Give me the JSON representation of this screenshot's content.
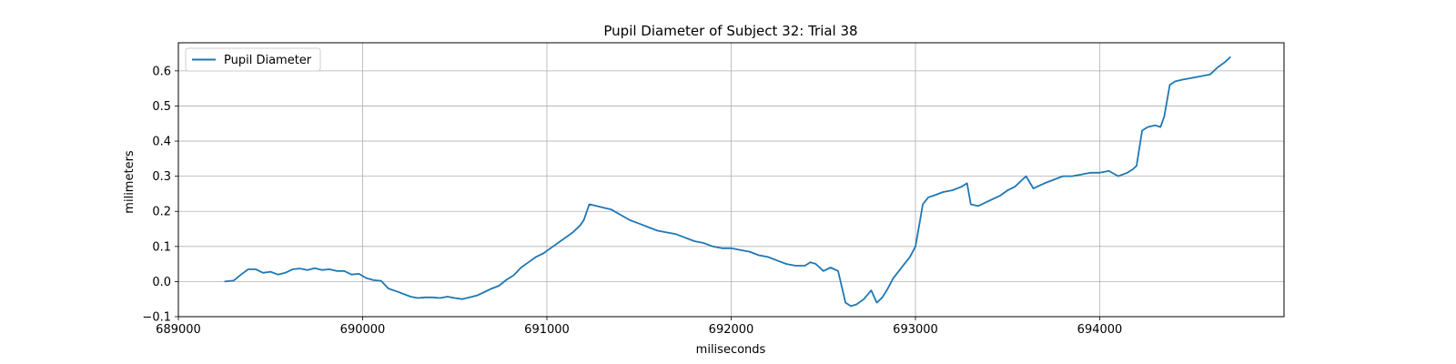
{
  "chart_data": {
    "type": "line",
    "title": "Pupil Diameter of Subject 32: Trial 38",
    "xlabel": "miliseconds",
    "ylabel": "milimeters",
    "xlim": [
      689000,
      695000
    ],
    "ylim": [
      -0.1,
      0.68
    ],
    "x_ticks": [
      "689000",
      "690000",
      "691000",
      "692000",
      "693000",
      "694000"
    ],
    "y_ticks": [
      "−0.1",
      "0.0",
      "0.1",
      "0.2",
      "0.3",
      "0.4",
      "0.5",
      "0.6"
    ],
    "grid": true,
    "legend": {
      "position": "top-left",
      "entries": [
        "Pupil Diameter"
      ]
    },
    "series": [
      {
        "name": "Pupil Diameter",
        "color": "#1f77b4",
        "x": [
          689250,
          689300,
          689340,
          689380,
          689420,
          689460,
          689500,
          689540,
          689580,
          689620,
          689660,
          689700,
          689740,
          689780,
          689820,
          689860,
          689900,
          689940,
          689980,
          690020,
          690060,
          690100,
          690140,
          690180,
          690220,
          690260,
          690300,
          690340,
          690380,
          690420,
          690460,
          690500,
          690540,
          690580,
          690620,
          690660,
          690700,
          690740,
          690780,
          690820,
          690860,
          690900,
          690940,
          690980,
          691020,
          691060,
          691100,
          691140,
          691180,
          691200,
          691230,
          691270,
          691310,
          691350,
          691400,
          691450,
          691500,
          691550,
          691600,
          691650,
          691700,
          691750,
          691800,
          691850,
          691900,
          691950,
          692000,
          692050,
          692100,
          692150,
          692200,
          692250,
          692300,
          692350,
          692400,
          692430,
          692460,
          692500,
          692540,
          692580,
          692620,
          692650,
          692680,
          692720,
          692760,
          692790,
          692820,
          692850,
          692880,
          692910,
          692940,
          692970,
          693000,
          693020,
          693040,
          693070,
          693100,
          693150,
          693200,
          693250,
          693280,
          693300,
          693340,
          693380,
          693420,
          693460,
          693500,
          693540,
          693580,
          693600,
          693640,
          693700,
          693750,
          693800,
          693850,
          693900,
          693950,
          694000,
          694050,
          694100,
          694150,
          694180,
          694200,
          694230,
          694260,
          694300,
          694330,
          694350,
          694380,
          694410,
          694450,
          694500,
          694550,
          694600,
          694640,
          694680,
          694710
        ],
        "y": [
          0.0,
          0.003,
          0.02,
          0.035,
          0.035,
          0.025,
          0.028,
          0.02,
          0.025,
          0.035,
          0.037,
          0.033,
          0.038,
          0.033,
          0.035,
          0.03,
          0.03,
          0.02,
          0.022,
          0.01,
          0.004,
          0.002,
          -0.02,
          -0.027,
          -0.035,
          -0.043,
          -0.047,
          -0.045,
          -0.045,
          -0.047,
          -0.043,
          -0.047,
          -0.05,
          -0.045,
          -0.04,
          -0.03,
          -0.02,
          -0.012,
          0.005,
          0.018,
          0.04,
          0.055,
          0.07,
          0.08,
          0.095,
          0.11,
          0.125,
          0.14,
          0.16,
          0.175,
          0.22,
          0.215,
          0.21,
          0.205,
          0.19,
          0.175,
          0.165,
          0.155,
          0.145,
          0.14,
          0.135,
          0.125,
          0.115,
          0.11,
          0.1,
          0.095,
          0.095,
          0.09,
          0.085,
          0.075,
          0.07,
          0.06,
          0.05,
          0.045,
          0.045,
          0.055,
          0.05,
          0.03,
          0.04,
          0.03,
          -0.06,
          -0.07,
          -0.065,
          -0.05,
          -0.025,
          -0.06,
          -0.045,
          -0.02,
          0.01,
          0.03,
          0.05,
          0.07,
          0.1,
          0.16,
          0.22,
          0.24,
          0.245,
          0.255,
          0.26,
          0.27,
          0.28,
          0.22,
          0.215,
          0.225,
          0.235,
          0.245,
          0.26,
          0.27,
          0.29,
          0.3,
          0.265,
          0.28,
          0.29,
          0.3,
          0.3,
          0.305,
          0.31,
          0.31,
          0.315,
          0.3,
          0.31,
          0.32,
          0.33,
          0.43,
          0.44,
          0.445,
          0.44,
          0.47,
          0.56,
          0.57,
          0.575,
          0.58,
          0.585,
          0.59,
          0.61,
          0.625,
          0.64
        ]
      }
    ]
  }
}
